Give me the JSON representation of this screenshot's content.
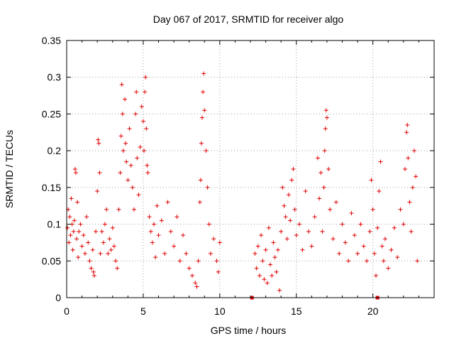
{
  "chart_data": {
    "type": "scatter",
    "title": "Day 067 of 2017, SRMTID for receiver algo",
    "xlabel": "GPS time / hours",
    "ylabel": "SRMTID / TECUs",
    "xlim": [
      0,
      24
    ],
    "ylim": [
      0,
      0.35
    ],
    "x_ticks": [
      0,
      5,
      10,
      15,
      20
    ],
    "x_tick_labels": [
      "0",
      "5",
      "10",
      "15",
      "20"
    ],
    "y_ticks": [
      0,
      0.05,
      0.1,
      0.15,
      0.2,
      0.25,
      0.3,
      0.35
    ],
    "y_tick_labels": [
      "0",
      "0.05",
      "0.1",
      "0.15",
      "0.2",
      "0.25",
      "0.3",
      "0.35"
    ],
    "grid": true,
    "marker": "plus",
    "color": "#e00000",
    "series": [
      {
        "name": "SRMTID",
        "points": [
          [
            0.05,
            0.095
          ],
          [
            0.1,
            0.12
          ],
          [
            0.15,
            0.075
          ],
          [
            0.2,
            0.11
          ],
          [
            0.25,
            0.085
          ],
          [
            0.3,
            0.135
          ],
          [
            0.35,
            0.1
          ],
          [
            0.4,
            0.065
          ],
          [
            0.45,
            0.09
          ],
          [
            0.5,
            0.105
          ],
          [
            0.55,
            0.175
          ],
          [
            0.6,
            0.17
          ],
          [
            0.65,
            0.08
          ],
          [
            0.7,
            0.13
          ],
          [
            0.75,
            0.055
          ],
          [
            0.8,
            0.09
          ],
          [
            0.9,
            0.1
          ],
          [
            1.0,
            0.07
          ],
          [
            1.1,
            0.085
          ],
          [
            1.2,
            0.06
          ],
          [
            1.3,
            0.11
          ],
          [
            1.4,
            0.075
          ],
          [
            1.5,
            0.05
          ],
          [
            1.6,
            0.04
          ],
          [
            1.7,
            0.065
          ],
          [
            1.75,
            0.035
          ],
          [
            1.8,
            0.03
          ],
          [
            1.9,
            0.09
          ],
          [
            2.0,
            0.145
          ],
          [
            2.05,
            0.215
          ],
          [
            2.1,
            0.21
          ],
          [
            2.15,
            0.17
          ],
          [
            2.2,
            0.06
          ],
          [
            2.3,
            0.09
          ],
          [
            2.4,
            0.075
          ],
          [
            2.5,
            0.1
          ],
          [
            2.6,
            0.12
          ],
          [
            2.7,
            0.06
          ],
          [
            2.8,
            0.08
          ],
          [
            2.9,
            0.065
          ],
          [
            3.0,
            0.095
          ],
          [
            3.1,
            0.07
          ],
          [
            3.2,
            0.05
          ],
          [
            3.3,
            0.04
          ],
          [
            3.4,
            0.12
          ],
          [
            3.5,
            0.17
          ],
          [
            3.55,
            0.22
          ],
          [
            3.6,
            0.29
          ],
          [
            3.65,
            0.25
          ],
          [
            3.7,
            0.2
          ],
          [
            3.8,
            0.27
          ],
          [
            3.85,
            0.21
          ],
          [
            3.9,
            0.185
          ],
          [
            4.0,
            0.16
          ],
          [
            4.1,
            0.23
          ],
          [
            4.2,
            0.18
          ],
          [
            4.3,
            0.15
          ],
          [
            4.4,
            0.12
          ],
          [
            4.5,
            0.25
          ],
          [
            4.55,
            0.28
          ],
          [
            4.6,
            0.19
          ],
          [
            4.7,
            0.14
          ],
          [
            4.8,
            0.205
          ],
          [
            4.9,
            0.26
          ],
          [
            5.0,
            0.24
          ],
          [
            5.05,
            0.2
          ],
          [
            5.1,
            0.28
          ],
          [
            5.15,
            0.3
          ],
          [
            5.2,
            0.23
          ],
          [
            5.25,
            0.18
          ],
          [
            5.3,
            0.17
          ],
          [
            5.4,
            0.11
          ],
          [
            5.5,
            0.09
          ],
          [
            5.6,
            0.075
          ],
          [
            5.7,
            0.1
          ],
          [
            5.8,
            0.055
          ],
          [
            5.9,
            0.125
          ],
          [
            6.0,
            0.085
          ],
          [
            6.2,
            0.105
          ],
          [
            6.4,
            0.06
          ],
          [
            6.6,
            0.13
          ],
          [
            6.8,
            0.09
          ],
          [
            7.0,
            0.07
          ],
          [
            7.2,
            0.11
          ],
          [
            7.4,
            0.05
          ],
          [
            7.6,
            0.085
          ],
          [
            7.8,
            0.06
          ],
          [
            8.0,
            0.04
          ],
          [
            8.2,
            0.03
          ],
          [
            8.4,
            0.02
          ],
          [
            8.5,
            0.015
          ],
          [
            8.6,
            0.05
          ],
          [
            8.7,
            0.13
          ],
          [
            8.75,
            0.16
          ],
          [
            8.8,
            0.21
          ],
          [
            8.85,
            0.245
          ],
          [
            8.9,
            0.28
          ],
          [
            8.95,
            0.305
          ],
          [
            9.0,
            0.255
          ],
          [
            9.1,
            0.2
          ],
          [
            9.2,
            0.15
          ],
          [
            9.3,
            0.1
          ],
          [
            9.4,
            0.06
          ],
          [
            9.6,
            0.08
          ],
          [
            9.8,
            0.05
          ],
          [
            9.9,
            0.035
          ],
          [
            10.0,
            0.075
          ],
          [
            12.3,
            0.06
          ],
          [
            12.4,
            0.04
          ],
          [
            12.5,
            0.07
          ],
          [
            12.6,
            0.03
          ],
          [
            12.7,
            0.085
          ],
          [
            12.8,
            0.05
          ],
          [
            12.9,
            0.025
          ],
          [
            13.0,
            0.065
          ],
          [
            13.1,
            0.02
          ],
          [
            13.2,
            0.095
          ],
          [
            13.3,
            0.045
          ],
          [
            13.4,
            0.03
          ],
          [
            13.5,
            0.075
          ],
          [
            13.6,
            0.055
          ],
          [
            13.7,
            0.035
          ],
          [
            13.8,
            0.065
          ],
          [
            13.9,
            0.01
          ],
          [
            14.0,
            0.09
          ],
          [
            14.1,
            0.15
          ],
          [
            14.2,
            0.125
          ],
          [
            14.3,
            0.11
          ],
          [
            14.4,
            0.08
          ],
          [
            14.5,
            0.14
          ],
          [
            14.6,
            0.105
          ],
          [
            14.7,
            0.16
          ],
          [
            14.8,
            0.175
          ],
          [
            14.9,
            0.12
          ],
          [
            15.0,
            0.085
          ],
          [
            15.2,
            0.1
          ],
          [
            15.4,
            0.065
          ],
          [
            15.6,
            0.145
          ],
          [
            15.8,
            0.09
          ],
          [
            16.0,
            0.07
          ],
          [
            16.2,
            0.11
          ],
          [
            16.4,
            0.19
          ],
          [
            16.5,
            0.135
          ],
          [
            16.6,
            0.17
          ],
          [
            16.7,
            0.09
          ],
          [
            16.8,
            0.15
          ],
          [
            16.85,
            0.2
          ],
          [
            16.9,
            0.23
          ],
          [
            16.95,
            0.255
          ],
          [
            17.0,
            0.245
          ],
          [
            17.1,
            0.175
          ],
          [
            17.2,
            0.12
          ],
          [
            17.4,
            0.08
          ],
          [
            17.6,
            0.13
          ],
          [
            17.8,
            0.06
          ],
          [
            18.0,
            0.1
          ],
          [
            18.2,
            0.075
          ],
          [
            18.4,
            0.05
          ],
          [
            18.6,
            0.115
          ],
          [
            18.8,
            0.085
          ],
          [
            19.0,
            0.06
          ],
          [
            19.2,
            0.1
          ],
          [
            19.4,
            0.07
          ],
          [
            19.6,
            0.05
          ],
          [
            19.8,
            0.09
          ],
          [
            19.9,
            0.16
          ],
          [
            20.0,
            0.12
          ],
          [
            20.1,
            0.06
          ],
          [
            20.2,
            0.03
          ],
          [
            20.3,
            0.095
          ],
          [
            20.4,
            0.145
          ],
          [
            20.5,
            0.185
          ],
          [
            20.6,
            0.07
          ],
          [
            20.7,
            0.05
          ],
          [
            20.8,
            0.08
          ],
          [
            21.0,
            0.04
          ],
          [
            21.2,
            0.065
          ],
          [
            21.4,
            0.095
          ],
          [
            21.6,
            0.055
          ],
          [
            21.8,
            0.12
          ],
          [
            22.0,
            0.1
          ],
          [
            22.1,
            0.175
          ],
          [
            22.2,
            0.225
          ],
          [
            22.25,
            0.235
          ],
          [
            22.3,
            0.19
          ],
          [
            22.4,
            0.13
          ],
          [
            22.5,
            0.09
          ],
          [
            22.6,
            0.15
          ],
          [
            22.7,
            0.2
          ],
          [
            22.8,
            0.165
          ],
          [
            22.9,
            0.05
          ]
        ]
      }
    ],
    "markers_on_axis": [
      [
        12.1,
        0.0
      ],
      [
        20.3,
        0.0
      ]
    ]
  }
}
